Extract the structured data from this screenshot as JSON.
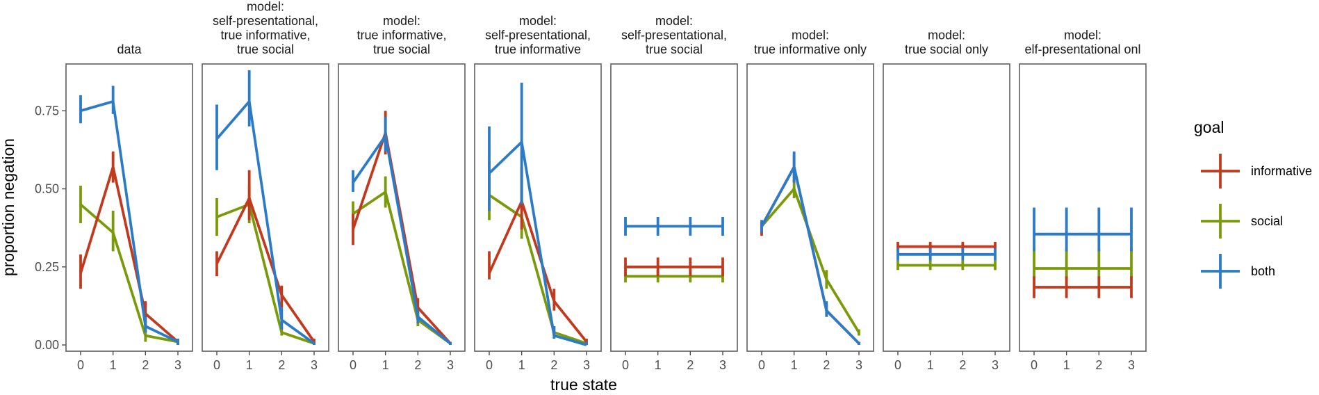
{
  "chart_data": {
    "type": "line",
    "xlabel": "true state",
    "ylabel": "proportion negation",
    "x_ticks": [
      0,
      1,
      2,
      3
    ],
    "y_ticks": [
      0.0,
      0.25,
      0.5,
      0.75
    ],
    "y_tick_labels": [
      "0.00",
      "0.25",
      "0.50",
      "0.75"
    ],
    "ylim": [
      -0.02,
      0.9
    ],
    "xlim": [
      -0.45,
      3.45
    ],
    "legend": {
      "title": "goal",
      "position": "right",
      "entries": [
        "informative",
        "social",
        "both"
      ]
    },
    "colors": {
      "informative": "#C23A1E",
      "social": "#7A9A0A",
      "both": "#2B7BC8"
    },
    "panels": [
      {
        "title_lines": [
          "data"
        ],
        "series": [
          {
            "goal": "informative",
            "x": [
              0,
              1,
              2,
              3
            ],
            "y": [
              0.23,
              0.57,
              0.1,
              0.01
            ],
            "lo": [
              0.18,
              0.52,
              0.06,
              0.0
            ],
            "hi": [
              0.29,
              0.62,
              0.14,
              0.02
            ]
          },
          {
            "goal": "social",
            "x": [
              0,
              1,
              2,
              3
            ],
            "y": [
              0.45,
              0.36,
              0.03,
              0.01
            ],
            "lo": [
              0.39,
              0.3,
              0.01,
              0.0
            ],
            "hi": [
              0.51,
              0.43,
              0.05,
              0.02
            ]
          },
          {
            "goal": "both",
            "x": [
              0,
              1,
              2,
              3
            ],
            "y": [
              0.75,
              0.78,
              0.06,
              0.01
            ],
            "lo": [
              0.71,
              0.74,
              0.04,
              0.0
            ],
            "hi": [
              0.8,
              0.83,
              0.09,
              0.02
            ]
          }
        ]
      },
      {
        "title_lines": [
          "model:",
          "self-presentational,",
          "true informative,",
          "true social"
        ],
        "series": [
          {
            "goal": "informative",
            "x": [
              0,
              1,
              2,
              3
            ],
            "y": [
              0.26,
              0.47,
              0.16,
              0.01
            ],
            "lo": [
              0.22,
              0.4,
              0.12,
              0.0
            ],
            "hi": [
              0.3,
              0.56,
              0.19,
              0.02
            ]
          },
          {
            "goal": "social",
            "x": [
              0,
              1,
              2,
              3
            ],
            "y": [
              0.41,
              0.45,
              0.04,
              0.005
            ],
            "lo": [
              0.35,
              0.39,
              0.03,
              0.0
            ],
            "hi": [
              0.47,
              0.51,
              0.06,
              0.01
            ]
          },
          {
            "goal": "both",
            "x": [
              0,
              1,
              2,
              3
            ],
            "y": [
              0.66,
              0.78,
              0.08,
              0.005
            ],
            "lo": [
              0.56,
              0.7,
              0.05,
              0.0
            ],
            "hi": [
              0.77,
              0.88,
              0.12,
              0.01
            ]
          }
        ]
      },
      {
        "title_lines": [
          "model:",
          "true informative,",
          "true social"
        ],
        "series": [
          {
            "goal": "informative",
            "x": [
              0,
              1,
              2,
              3
            ],
            "y": [
              0.37,
              0.68,
              0.12,
              0.005
            ],
            "lo": [
              0.32,
              0.61,
              0.09,
              0.0
            ],
            "hi": [
              0.42,
              0.75,
              0.15,
              0.01
            ]
          },
          {
            "goal": "social",
            "x": [
              0,
              1,
              2,
              3
            ],
            "y": [
              0.42,
              0.49,
              0.08,
              0.005
            ],
            "lo": [
              0.38,
              0.44,
              0.06,
              0.0
            ],
            "hi": [
              0.46,
              0.54,
              0.1,
              0.01
            ]
          },
          {
            "goal": "both",
            "x": [
              0,
              1,
              2,
              3
            ],
            "y": [
              0.52,
              0.67,
              0.09,
              0.005
            ],
            "lo": [
              0.49,
              0.62,
              0.07,
              0.0
            ],
            "hi": [
              0.56,
              0.73,
              0.11,
              0.01
            ]
          }
        ]
      },
      {
        "title_lines": [
          "model:",
          "self-presentational,",
          "true informative"
        ],
        "series": [
          {
            "goal": "informative",
            "x": [
              0,
              1,
              2,
              3
            ],
            "y": [
              0.23,
              0.46,
              0.14,
              0.01
            ],
            "lo": [
              0.21,
              0.37,
              0.11,
              0.0
            ],
            "hi": [
              0.3,
              0.57,
              0.18,
              0.02
            ]
          },
          {
            "goal": "social",
            "x": [
              0,
              1,
              2,
              3
            ],
            "y": [
              0.48,
              0.41,
              0.04,
              0.005
            ],
            "lo": [
              0.4,
              0.34,
              0.02,
              0.0
            ],
            "hi": [
              0.59,
              0.62,
              0.06,
              0.01
            ]
          },
          {
            "goal": "both",
            "x": [
              0,
              1,
              2,
              3
            ],
            "y": [
              0.55,
              0.65,
              0.03,
              0.0
            ],
            "lo": [
              0.43,
              0.45,
              0.02,
              0.0
            ],
            "hi": [
              0.7,
              0.84,
              0.06,
              0.01
            ]
          }
        ]
      },
      {
        "title_lines": [
          "model:",
          "self-presentational,",
          "true social"
        ],
        "series": [
          {
            "goal": "informative",
            "x": [
              0,
              1,
              2,
              3
            ],
            "y": [
              0.25,
              0.25,
              0.25,
              0.25
            ],
            "lo": [
              0.22,
              0.22,
              0.22,
              0.22
            ],
            "hi": [
              0.28,
              0.28,
              0.28,
              0.28
            ]
          },
          {
            "goal": "social",
            "x": [
              0,
              1,
              2,
              3
            ],
            "y": [
              0.22,
              0.22,
              0.22,
              0.22
            ],
            "lo": [
              0.2,
              0.2,
              0.2,
              0.2
            ],
            "hi": [
              0.24,
              0.24,
              0.24,
              0.24
            ]
          },
          {
            "goal": "both",
            "x": [
              0,
              1,
              2,
              3
            ],
            "y": [
              0.38,
              0.38,
              0.38,
              0.38
            ],
            "lo": [
              0.35,
              0.35,
              0.35,
              0.35
            ],
            "hi": [
              0.41,
              0.41,
              0.41,
              0.41
            ]
          }
        ]
      },
      {
        "title_lines": [
          "model:",
          "true informative only"
        ],
        "series": [
          {
            "goal": "informative",
            "x": [
              0,
              1,
              2,
              3
            ],
            "y": [
              0.38,
              0.57,
              0.11,
              0.005
            ],
            "lo": [
              0.35,
              0.52,
              0.09,
              0.0
            ],
            "hi": [
              0.4,
              0.61,
              0.13,
              0.01
            ]
          },
          {
            "goal": "social",
            "x": [
              0,
              1,
              2,
              3
            ],
            "y": [
              0.38,
              0.5,
              0.21,
              0.04
            ],
            "lo": [
              0.36,
              0.47,
              0.18,
              0.03
            ],
            "hi": [
              0.4,
              0.53,
              0.24,
              0.05
            ]
          },
          {
            "goal": "both",
            "x": [
              0,
              1,
              2,
              3
            ],
            "y": [
              0.38,
              0.57,
              0.11,
              0.005
            ],
            "lo": [
              0.36,
              0.52,
              0.09,
              0.0
            ],
            "hi": [
              0.4,
              0.62,
              0.14,
              0.01
            ]
          }
        ]
      },
      {
        "title_lines": [
          "model:",
          "true social only"
        ],
        "series": [
          {
            "goal": "informative",
            "x": [
              0,
              1,
              2,
              3
            ],
            "y": [
              0.315,
              0.315,
              0.315,
              0.315
            ],
            "lo": [
              0.3,
              0.3,
              0.3,
              0.3
            ],
            "hi": [
              0.33,
              0.33,
              0.33,
              0.33
            ]
          },
          {
            "goal": "social",
            "x": [
              0,
              1,
              2,
              3
            ],
            "y": [
              0.255,
              0.255,
              0.255,
              0.255
            ],
            "lo": [
              0.24,
              0.24,
              0.24,
              0.24
            ],
            "hi": [
              0.27,
              0.27,
              0.27,
              0.27
            ]
          },
          {
            "goal": "both",
            "x": [
              0,
              1,
              2,
              3
            ],
            "y": [
              0.29,
              0.29,
              0.29,
              0.29
            ],
            "lo": [
              0.27,
              0.27,
              0.27,
              0.27
            ],
            "hi": [
              0.31,
              0.31,
              0.31,
              0.31
            ]
          }
        ]
      },
      {
        "title_lines": [
          "model:",
          "elf-presentational onl"
        ],
        "series": [
          {
            "goal": "informative",
            "x": [
              0,
              1,
              2,
              3
            ],
            "y": [
              0.185,
              0.185,
              0.185,
              0.185
            ],
            "lo": [
              0.15,
              0.15,
              0.15,
              0.15
            ],
            "hi": [
              0.22,
              0.22,
              0.22,
              0.22
            ]
          },
          {
            "goal": "social",
            "x": [
              0,
              1,
              2,
              3
            ],
            "y": [
              0.245,
              0.245,
              0.245,
              0.245
            ],
            "lo": [
              0.21,
              0.21,
              0.21,
              0.21
            ],
            "hi": [
              0.31,
              0.31,
              0.31,
              0.31
            ]
          },
          {
            "goal": "both",
            "x": [
              0,
              1,
              2,
              3
            ],
            "y": [
              0.355,
              0.355,
              0.355,
              0.355
            ],
            "lo": [
              0.3,
              0.3,
              0.3,
              0.3
            ],
            "hi": [
              0.44,
              0.44,
              0.44,
              0.44
            ]
          }
        ]
      }
    ]
  }
}
